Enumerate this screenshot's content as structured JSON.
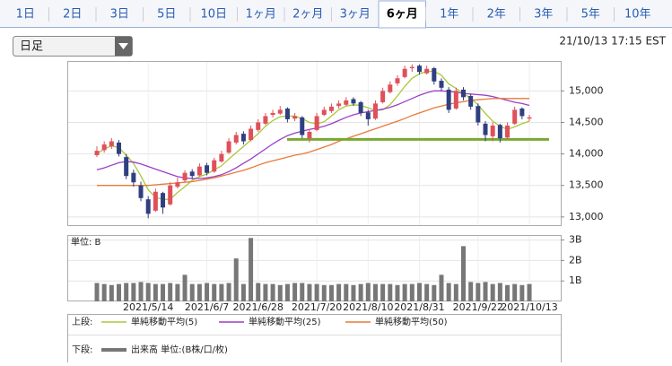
{
  "tabs": [
    "1日",
    "2日",
    "3日",
    "5日",
    "10日",
    "1ヶ月",
    "2ヶ月",
    "3ヶ月",
    "6ヶ月",
    "1年",
    "2年",
    "3年",
    "5年",
    "10年"
  ],
  "active_tab": 8,
  "selector": "日足",
  "timestamp": "21/10/13 17:15 EST",
  "chart_data": {
    "type": "candlestick",
    "categories": [
      null,
      null,
      null,
      null,
      null,
      null,
      null,
      "2021/5/14",
      null,
      null,
      null,
      null,
      null,
      null,
      null,
      "2021/6/7",
      null,
      null,
      null,
      null,
      null,
      null,
      "2021/6/28",
      null,
      null,
      null,
      null,
      null,
      null,
      null,
      "2021/7/20",
      null,
      null,
      null,
      null,
      null,
      null,
      "2021/8/10",
      null,
      null,
      null,
      null,
      null,
      null,
      "2021/8/31",
      null,
      null,
      null,
      null,
      null,
      null,
      null,
      "2021/9/22",
      null,
      null,
      null,
      null,
      null,
      null,
      "2021/10/13"
    ],
    "candles": [
      [
        13980,
        14120,
        13950,
        14050
      ],
      [
        14060,
        14200,
        14020,
        14150
      ],
      [
        14120,
        14250,
        14080,
        14200
      ],
      [
        14180,
        14220,
        13960,
        14000
      ],
      [
        13950,
        14000,
        13600,
        13650
      ],
      [
        13700,
        13750,
        13480,
        13550
      ],
      [
        13500,
        13560,
        13250,
        13300
      ],
      [
        13280,
        13330,
        12980,
        13050
      ],
      [
        13100,
        13450,
        13080,
        13400
      ],
      [
        13380,
        13400,
        13050,
        13150
      ],
      [
        13200,
        13550,
        13180,
        13500
      ],
      [
        13480,
        13620,
        13450,
        13550
      ],
      [
        13580,
        13740,
        13550,
        13700
      ],
      [
        13720,
        13760,
        13600,
        13650
      ],
      [
        13660,
        13850,
        13640,
        13800
      ],
      [
        13820,
        13860,
        13660,
        13700
      ],
      [
        13720,
        13940,
        13700,
        13900
      ],
      [
        13880,
        14050,
        13860,
        14000
      ],
      [
        14020,
        14250,
        14000,
        14200
      ],
      [
        14180,
        14350,
        14150,
        14300
      ],
      [
        14320,
        14360,
        14150,
        14200
      ],
      [
        14220,
        14450,
        14200,
        14400
      ],
      [
        14380,
        14550,
        14350,
        14500
      ],
      [
        14480,
        14650,
        14460,
        14600
      ],
      [
        14620,
        14700,
        14580,
        14650
      ],
      [
        14640,
        14760,
        14620,
        14700
      ],
      [
        14720,
        14740,
        14500,
        14550
      ],
      [
        14560,
        14650,
        14520,
        14600
      ],
      [
        14580,
        14600,
        14250,
        14300
      ],
      [
        14250,
        14400,
        14180,
        14350
      ],
      [
        14380,
        14650,
        14360,
        14600
      ],
      [
        14620,
        14750,
        14600,
        14700
      ],
      [
        14680,
        14800,
        14650,
        14750
      ],
      [
        14760,
        14850,
        14720,
        14800
      ],
      [
        14780,
        14900,
        14760,
        14850
      ],
      [
        14870,
        14900,
        14760,
        14800
      ],
      [
        14820,
        14840,
        14600,
        14650
      ],
      [
        14660,
        14700,
        14450,
        14550
      ],
      [
        14560,
        14850,
        14540,
        14800
      ],
      [
        14820,
        15050,
        14800,
        15000
      ],
      [
        14980,
        15150,
        14960,
        15100
      ],
      [
        15120,
        15250,
        15080,
        15200
      ],
      [
        15220,
        15400,
        15200,
        15350
      ],
      [
        15360,
        15420,
        15300,
        15380
      ],
      [
        15400,
        15420,
        15260,
        15300
      ],
      [
        15280,
        15400,
        15260,
        15350
      ],
      [
        15360,
        15380,
        15100,
        15150
      ],
      [
        15160,
        15200,
        15000,
        15050
      ],
      [
        15020,
        15060,
        14650,
        14700
      ],
      [
        14720,
        15050,
        14700,
        15000
      ],
      [
        15020,
        15060,
        14850,
        14900
      ],
      [
        14920,
        14950,
        14700,
        14750
      ],
      [
        14760,
        14800,
        14450,
        14500
      ],
      [
        14480,
        14520,
        14200,
        14300
      ],
      [
        14280,
        14500,
        14200,
        14450
      ],
      [
        14460,
        14480,
        14180,
        14250
      ],
      [
        14260,
        14500,
        14240,
        14450
      ],
      [
        14480,
        14750,
        14460,
        14700
      ],
      [
        14720,
        14740,
        14550,
        14600
      ],
      [
        14560,
        14620,
        14520,
        14580
      ]
    ],
    "up_color": "#e0505a",
    "down_color": "#2f3f80",
    "ylim": [
      12870,
      15460
    ],
    "yticks": [
      {
        "value": 13000,
        "label": "13,000"
      },
      {
        "value": 13500,
        "label": "13,500"
      },
      {
        "value": 14000,
        "label": "14,000"
      },
      {
        "value": 14500,
        "label": "14,500"
      },
      {
        "value": 15000,
        "label": "15,000"
      }
    ],
    "grid": true,
    "support_line": {
      "value": 14230,
      "color": "#7aa832"
    },
    "upper_label": "上段:",
    "lower_label": "下段:",
    "moving_averages": [
      {
        "name": "単純移動平均(5)",
        "color": "#a8c83a",
        "values": [
          14000,
          14080,
          14130,
          14100,
          13980,
          13850,
          13650,
          13430,
          13310,
          13280,
          13280,
          13390,
          13480,
          13580,
          13640,
          13680,
          13750,
          13810,
          13920,
          14020,
          14120,
          14220,
          14320,
          14440,
          14530,
          14590,
          14600,
          14600,
          14560,
          14500,
          14480,
          14510,
          14600,
          14700,
          14760,
          14780,
          14770,
          14730,
          14690,
          14700,
          14780,
          14920,
          15070,
          15200,
          15270,
          15310,
          15310,
          15250,
          15110,
          15040,
          14960,
          14880,
          14780,
          14640,
          14520,
          14440,
          14390,
          14430,
          14480,
          14520
        ]
      },
      {
        "name": "単純移動平均(25)",
        "color": "#9b3fc8",
        "values": [
          13750,
          13780,
          13820,
          13860,
          13880,
          13870,
          13840,
          13800,
          13760,
          13720,
          13680,
          13640,
          13620,
          13610,
          13610,
          13620,
          13640,
          13670,
          13720,
          13780,
          13850,
          13920,
          14000,
          14080,
          14160,
          14230,
          14290,
          14330,
          14360,
          14390,
          14410,
          14440,
          14480,
          14530,
          14580,
          14620,
          14650,
          14670,
          14690,
          14710,
          14740,
          14780,
          14830,
          14880,
          14930,
          14970,
          15000,
          15000,
          14990,
          14980,
          14960,
          14950,
          14940,
          14930,
          14910,
          14880,
          14850,
          14820,
          14800,
          14770
        ]
      },
      {
        "name": "単純移動平均(50)",
        "color": "#e87a3a",
        "values": [
          13500,
          13500,
          13500,
          13500,
          13500,
          13500,
          13500,
          13500,
          13510,
          13520,
          13530,
          13540,
          13550,
          13560,
          13580,
          13600,
          13620,
          13650,
          13680,
          13710,
          13740,
          13780,
          13820,
          13860,
          13890,
          13920,
          13950,
          13980,
          14000,
          14030,
          14070,
          14110,
          14150,
          14200,
          14240,
          14280,
          14320,
          14360,
          14400,
          14440,
          14480,
          14520,
          14560,
          14610,
          14650,
          14690,
          14730,
          14760,
          14790,
          14810,
          14830,
          14850,
          14860,
          14870,
          14880,
          14880,
          14880,
          14880,
          14880,
          14880
        ]
      }
    ],
    "volume": {
      "unit_label": "単位: B",
      "name": "出来高 単位:(B株/口/枚)",
      "color": "#777777",
      "ylim": [
        0,
        3.2
      ],
      "yticks": [
        {
          "value": 1,
          "label": "1B"
        },
        {
          "value": 2,
          "label": "2B"
        },
        {
          "value": 3,
          "label": "3B"
        }
      ],
      "values": [
        0.9,
        0.85,
        0.8,
        0.85,
        0.9,
        0.9,
        0.95,
        0.9,
        0.85,
        0.85,
        0.9,
        0.85,
        1.3,
        0.85,
        0.85,
        0.9,
        0.85,
        0.85,
        0.9,
        2.1,
        0.85,
        3.1,
        0.9,
        0.85,
        0.85,
        0.8,
        0.85,
        0.9,
        0.9,
        0.85,
        0.85,
        0.8,
        0.8,
        0.85,
        0.85,
        0.8,
        0.85,
        0.9,
        0.85,
        0.85,
        0.85,
        0.8,
        0.85,
        0.85,
        0.9,
        0.85,
        0.8,
        1.3,
        0.9,
        0.85,
        2.7,
        0.95,
        0.9,
        0.95,
        0.85,
        0.9,
        0.8,
        0.85,
        0.8,
        0.85
      ]
    }
  }
}
